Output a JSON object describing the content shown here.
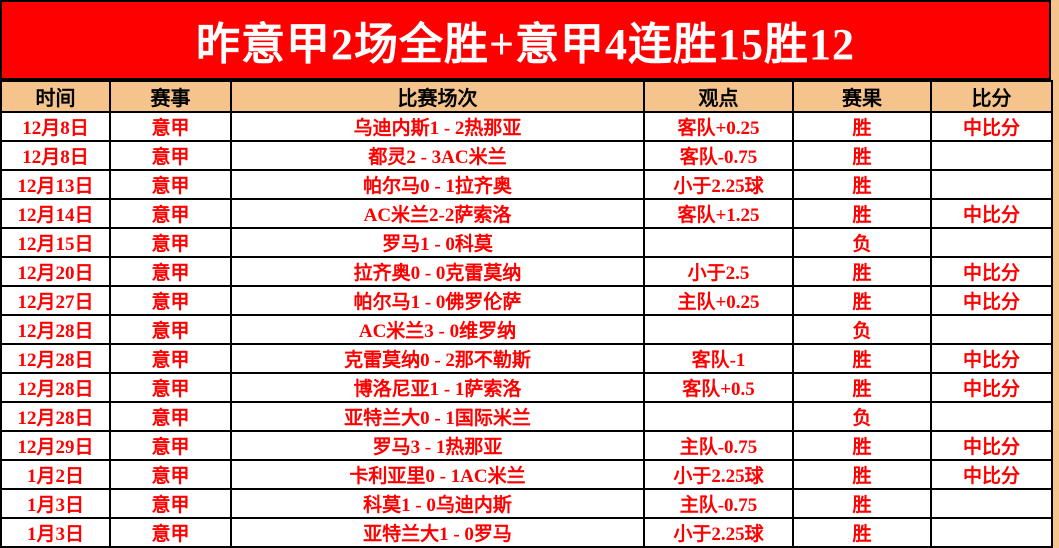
{
  "banner": {
    "title": "昨意甲2场全胜+意甲4连胜15胜12"
  },
  "table": {
    "columns": [
      "时间",
      "赛事",
      "比赛场次",
      "观点",
      "赛果",
      "比分"
    ],
    "win_label": "胜",
    "loss_label": "负",
    "rows": [
      {
        "date": "12月8日",
        "league": "意甲",
        "match": "乌迪内斯1 - 2热那亚",
        "view": "客队+0.25",
        "result": "胜",
        "win": true,
        "score": "中比分"
      },
      {
        "date": "12月8日",
        "league": "意甲",
        "match": "都灵2 - 3AC米兰",
        "view": "客队-0.75",
        "result": "胜",
        "win": true,
        "score": ""
      },
      {
        "date": "12月13日",
        "league": "意甲",
        "match": "帕尔马0 - 1拉齐奥",
        "view": "小于2.25球",
        "result": "胜",
        "win": true,
        "score": ""
      },
      {
        "date": "12月14日",
        "league": "意甲",
        "match": "AC米兰2-2萨索洛",
        "view": "客队+1.25",
        "result": "胜",
        "win": true,
        "score": "中比分"
      },
      {
        "date": "12月15日",
        "league": "意甲",
        "match": "罗马1 - 0科莫",
        "view": "",
        "result": "负",
        "win": false,
        "score": ""
      },
      {
        "date": "12月20日",
        "league": "意甲",
        "match": "拉齐奥0 - 0克雷莫纳",
        "view": "小于2.5",
        "result": "胜",
        "win": true,
        "score": "中比分"
      },
      {
        "date": "12月27日",
        "league": "意甲",
        "match": "帕尔马1 - 0佛罗伦萨",
        "view": "主队+0.25",
        "result": "胜",
        "win": true,
        "score": "中比分"
      },
      {
        "date": "12月28日",
        "league": "意甲",
        "match": "AC米兰3 - 0维罗纳",
        "view": "",
        "result": "负",
        "win": false,
        "score": ""
      },
      {
        "date": "12月28日",
        "league": "意甲",
        "match": "克雷莫纳0 - 2那不勒斯",
        "view": "客队-1",
        "result": "胜",
        "win": true,
        "score": "中比分"
      },
      {
        "date": "12月28日",
        "league": "意甲",
        "match": "博洛尼亚1 - 1萨索洛",
        "view": "客队+0.5",
        "result": "胜",
        "win": true,
        "score": "中比分"
      },
      {
        "date": "12月28日",
        "league": "意甲",
        "match": "亚特兰大0 - 1国际米兰",
        "view": "",
        "result": "负",
        "win": false,
        "score": ""
      },
      {
        "date": "12月29日",
        "league": "意甲",
        "match": "罗马3 - 1热那亚",
        "view": "主队-0.75",
        "result": "胜",
        "win": true,
        "score": "中比分"
      },
      {
        "date": "1月2日",
        "league": "意甲",
        "match": "卡利亚里0 - 1AC米兰",
        "view": "小于2.25球",
        "result": "胜",
        "win": true,
        "score": "中比分"
      },
      {
        "date": "1月3日",
        "league": "意甲",
        "match": "科莫1 - 0乌迪内斯",
        "view": "主队-0.75",
        "result": "胜",
        "win": true,
        "score": ""
      },
      {
        "date": "1月3日",
        "league": "意甲",
        "match": "亚特兰大1 - 0罗马",
        "view": "小于2.25球",
        "result": "胜",
        "win": true,
        "score": ""
      }
    ]
  },
  "colors": {
    "page_background": "#F4C48C",
    "banner_background": "#FF0000",
    "banner_text": "#FFFFFF",
    "accent_text": "#FF0000",
    "win_highlight": "#FFFF00",
    "loss_text": "#1A1A1A",
    "border": "#000000"
  }
}
